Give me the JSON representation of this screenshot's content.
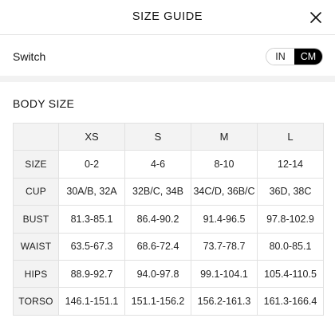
{
  "header": {
    "title": "SIZE GUIDE",
    "close_icon": "close-icon"
  },
  "switch": {
    "label": "Switch",
    "options": [
      "IN",
      "CM"
    ],
    "selected": "CM"
  },
  "body_size": {
    "title": "BODY SIZE",
    "columns": [
      "XS",
      "S",
      "M",
      "L"
    ],
    "rows": [
      {
        "label": "SIZE",
        "values": [
          "0-2",
          "4-6",
          "8-10",
          "12-14"
        ]
      },
      {
        "label": "CUP",
        "values": [
          "30A/B, 32A",
          "32B/C, 34B",
          "34C/D, 36B/C",
          "36D, 38C"
        ]
      },
      {
        "label": "BUST",
        "values": [
          "81.3-85.1",
          "86.4-90.2",
          "91.4-96.5",
          "97.8-102.9"
        ]
      },
      {
        "label": "WAIST",
        "values": [
          "63.5-67.3",
          "68.6-72.4",
          "73.7-78.7",
          "80.0-85.1"
        ]
      },
      {
        "label": "HIPS",
        "values": [
          "88.9-92.7",
          "94.0-97.8",
          "99.1-104.1",
          "105.4-110.5"
        ]
      },
      {
        "label": "TORSO",
        "values": [
          "146.1-151.1",
          "151.1-156.2",
          "156.2-161.3",
          "161.3-166.4"
        ]
      }
    ]
  }
}
